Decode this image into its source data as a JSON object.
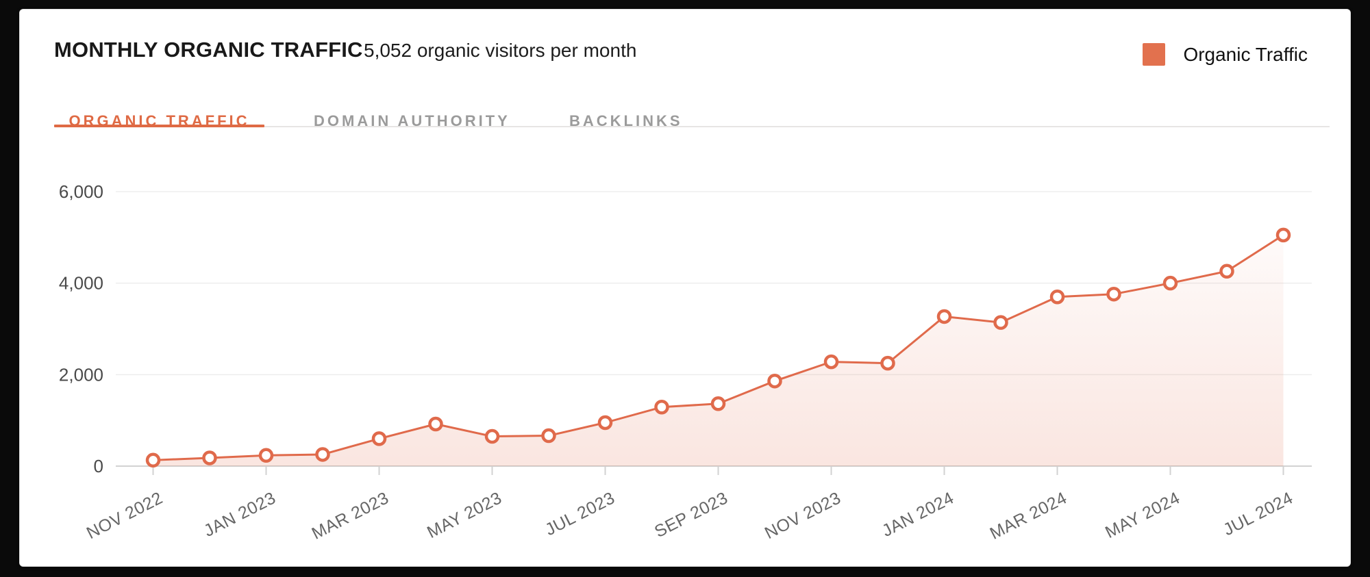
{
  "header": {
    "title": "MONTHLY ORGANIC TRAFFIC",
    "subtitle": "5,052 organic visitors per month"
  },
  "legend": {
    "label": "Organic Traffic",
    "swatch_color": "#E2714E"
  },
  "tabs": [
    {
      "label": "ORGANIC TRAFFIC",
      "active": true
    },
    {
      "label": "DOMAIN AUTHORITY",
      "active": false
    },
    {
      "label": "BACKLINKS",
      "active": false
    }
  ],
  "colors": {
    "accent_line": "#E06A4B",
    "accent_fill": "#E06A4B",
    "grid_line": "#ededed",
    "axis_line": "#d2d2d2",
    "y_label": "#4a4a4a",
    "x_label": "#666666",
    "tab_active": "#DF6A44",
    "tab_inactive": "#9b9b9b"
  },
  "chart_data": {
    "type": "line",
    "area_fill": true,
    "title": "MONTHLY ORGANIC TRAFFIC",
    "legend": [
      "Organic Traffic"
    ],
    "legend_position": "top-right",
    "grid": "horizontal-only",
    "categories": [
      "NOV 2022",
      "DEC 2022",
      "JAN 2023",
      "FEB 2023",
      "MAR 2023",
      "APR 2023",
      "MAY 2023",
      "JUN 2023",
      "JUL 2023",
      "AUG 2023",
      "SEP 2023",
      "OCT 2023",
      "NOV 2023",
      "DEC 2023",
      "JAN 2024",
      "FEB 2024",
      "MAR 2024",
      "APR 2024",
      "MAY 2024",
      "JUN 2024",
      "JUL 2024"
    ],
    "series": [
      {
        "name": "Organic Traffic",
        "values": [
          130,
          180,
          235,
          255,
          600,
          920,
          650,
          665,
          950,
          1290,
          1365,
          1860,
          2280,
          2250,
          3270,
          3140,
          3700,
          3760,
          4000,
          4260,
          5052
        ]
      }
    ],
    "x_tick_labels": [
      "NOV 2022",
      "JAN 2023",
      "MAR 2023",
      "MAY 2023",
      "JUL 2023",
      "SEP 2023",
      "NOV 2023",
      "JAN 2024",
      "MAR 2024",
      "MAY 2024",
      "JUL 2024"
    ],
    "x_label_every": 2,
    "x_label_rotation_deg": -27,
    "ylim": [
      0,
      6000
    ],
    "yticks": [
      0,
      2000,
      4000,
      6000
    ],
    "ytick_labels": [
      "0",
      "2,000",
      "4,000",
      "6,000"
    ]
  }
}
